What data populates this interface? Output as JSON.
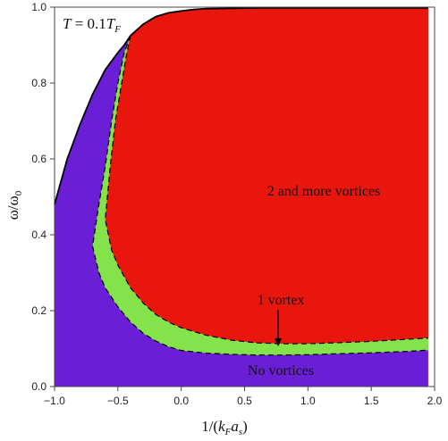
{
  "chart_data": {
    "type": "area",
    "title": "",
    "annotation": {
      "prefix": "T = 0.1",
      "main": "T",
      "sub": "F"
    },
    "xlabel": {
      "prefix": "1/(k",
      "sub1": "F",
      "mid": "a",
      "sub2": "s",
      "suffix": ")"
    },
    "ylabel": {
      "main": "ω/ω",
      "sub": "0"
    },
    "xlim": [
      -1.0,
      2.0
    ],
    "ylim": [
      0.0,
      1.0
    ],
    "x_ticks": [
      "−1.0",
      "−0.5",
      "0.0",
      "0.5",
      "1.0",
      "1.5",
      "2.0"
    ],
    "y_ticks": [
      "0.0",
      "0.2",
      "0.4",
      "0.6",
      "0.8",
      "1.0"
    ],
    "x_tick_values": [
      -1.0,
      -0.5,
      0.0,
      0.5,
      1.0,
      1.5,
      2.0
    ],
    "y_tick_values": [
      0.0,
      0.2,
      0.4,
      0.6,
      0.8,
      1.0
    ],
    "colors": {
      "no_vortices": "#6a1fd6",
      "one_vortex": "#84e34a",
      "many_vortices": "#e8160d"
    },
    "regions": [
      {
        "name": "No vortices",
        "label": "No vortices"
      },
      {
        "name": "1 vortex",
        "label": "1 vortex"
      },
      {
        "name": "2 and more vortices",
        "label": "2 and more vortices"
      }
    ],
    "boundaries": {
      "upper": {
        "x": [
          -1.0,
          -0.9,
          -0.8,
          -0.7,
          -0.6,
          -0.5,
          -0.45,
          -0.4,
          -0.3,
          -0.2,
          -0.1,
          0.0,
          0.1,
          0.2,
          0.4,
          0.6,
          0.8,
          1.0,
          1.5,
          1.95
        ],
        "y": [
          0.48,
          0.6,
          0.69,
          0.77,
          0.835,
          0.88,
          0.9,
          0.925,
          0.955,
          0.975,
          0.985,
          0.99,
          0.994,
          0.996,
          0.997,
          0.998,
          0.998,
          0.998,
          0.998,
          0.998
        ]
      },
      "outer": {
        "x": [
          -0.4,
          -0.45,
          -0.5,
          -0.55,
          -0.6,
          -0.65,
          -0.7,
          -0.65,
          -0.6,
          -0.5,
          -0.4,
          -0.3,
          -0.2,
          -0.1,
          0.0,
          0.2,
          0.4,
          0.6,
          0.8,
          1.0,
          1.2,
          1.5,
          1.8,
          1.95
        ],
        "y": [
          0.925,
          0.88,
          0.8,
          0.7,
          0.58,
          0.48,
          0.37,
          0.3,
          0.26,
          0.21,
          0.17,
          0.14,
          0.12,
          0.105,
          0.095,
          0.088,
          0.085,
          0.083,
          0.083,
          0.084,
          0.086,
          0.089,
          0.093,
          0.096
        ]
      },
      "inner": {
        "x": [
          -0.4,
          -0.43,
          -0.47,
          -0.52,
          -0.56,
          -0.6,
          -0.55,
          -0.5,
          -0.4,
          -0.3,
          -0.2,
          -0.1,
          0.0,
          0.2,
          0.4,
          0.6,
          0.8,
          1.0,
          1.2,
          1.5,
          1.8,
          1.95
        ],
        "y": [
          0.925,
          0.88,
          0.8,
          0.7,
          0.58,
          0.44,
          0.36,
          0.32,
          0.26,
          0.22,
          0.19,
          0.17,
          0.155,
          0.135,
          0.122,
          0.115,
          0.113,
          0.113,
          0.115,
          0.119,
          0.125,
          0.128
        ]
      }
    }
  }
}
